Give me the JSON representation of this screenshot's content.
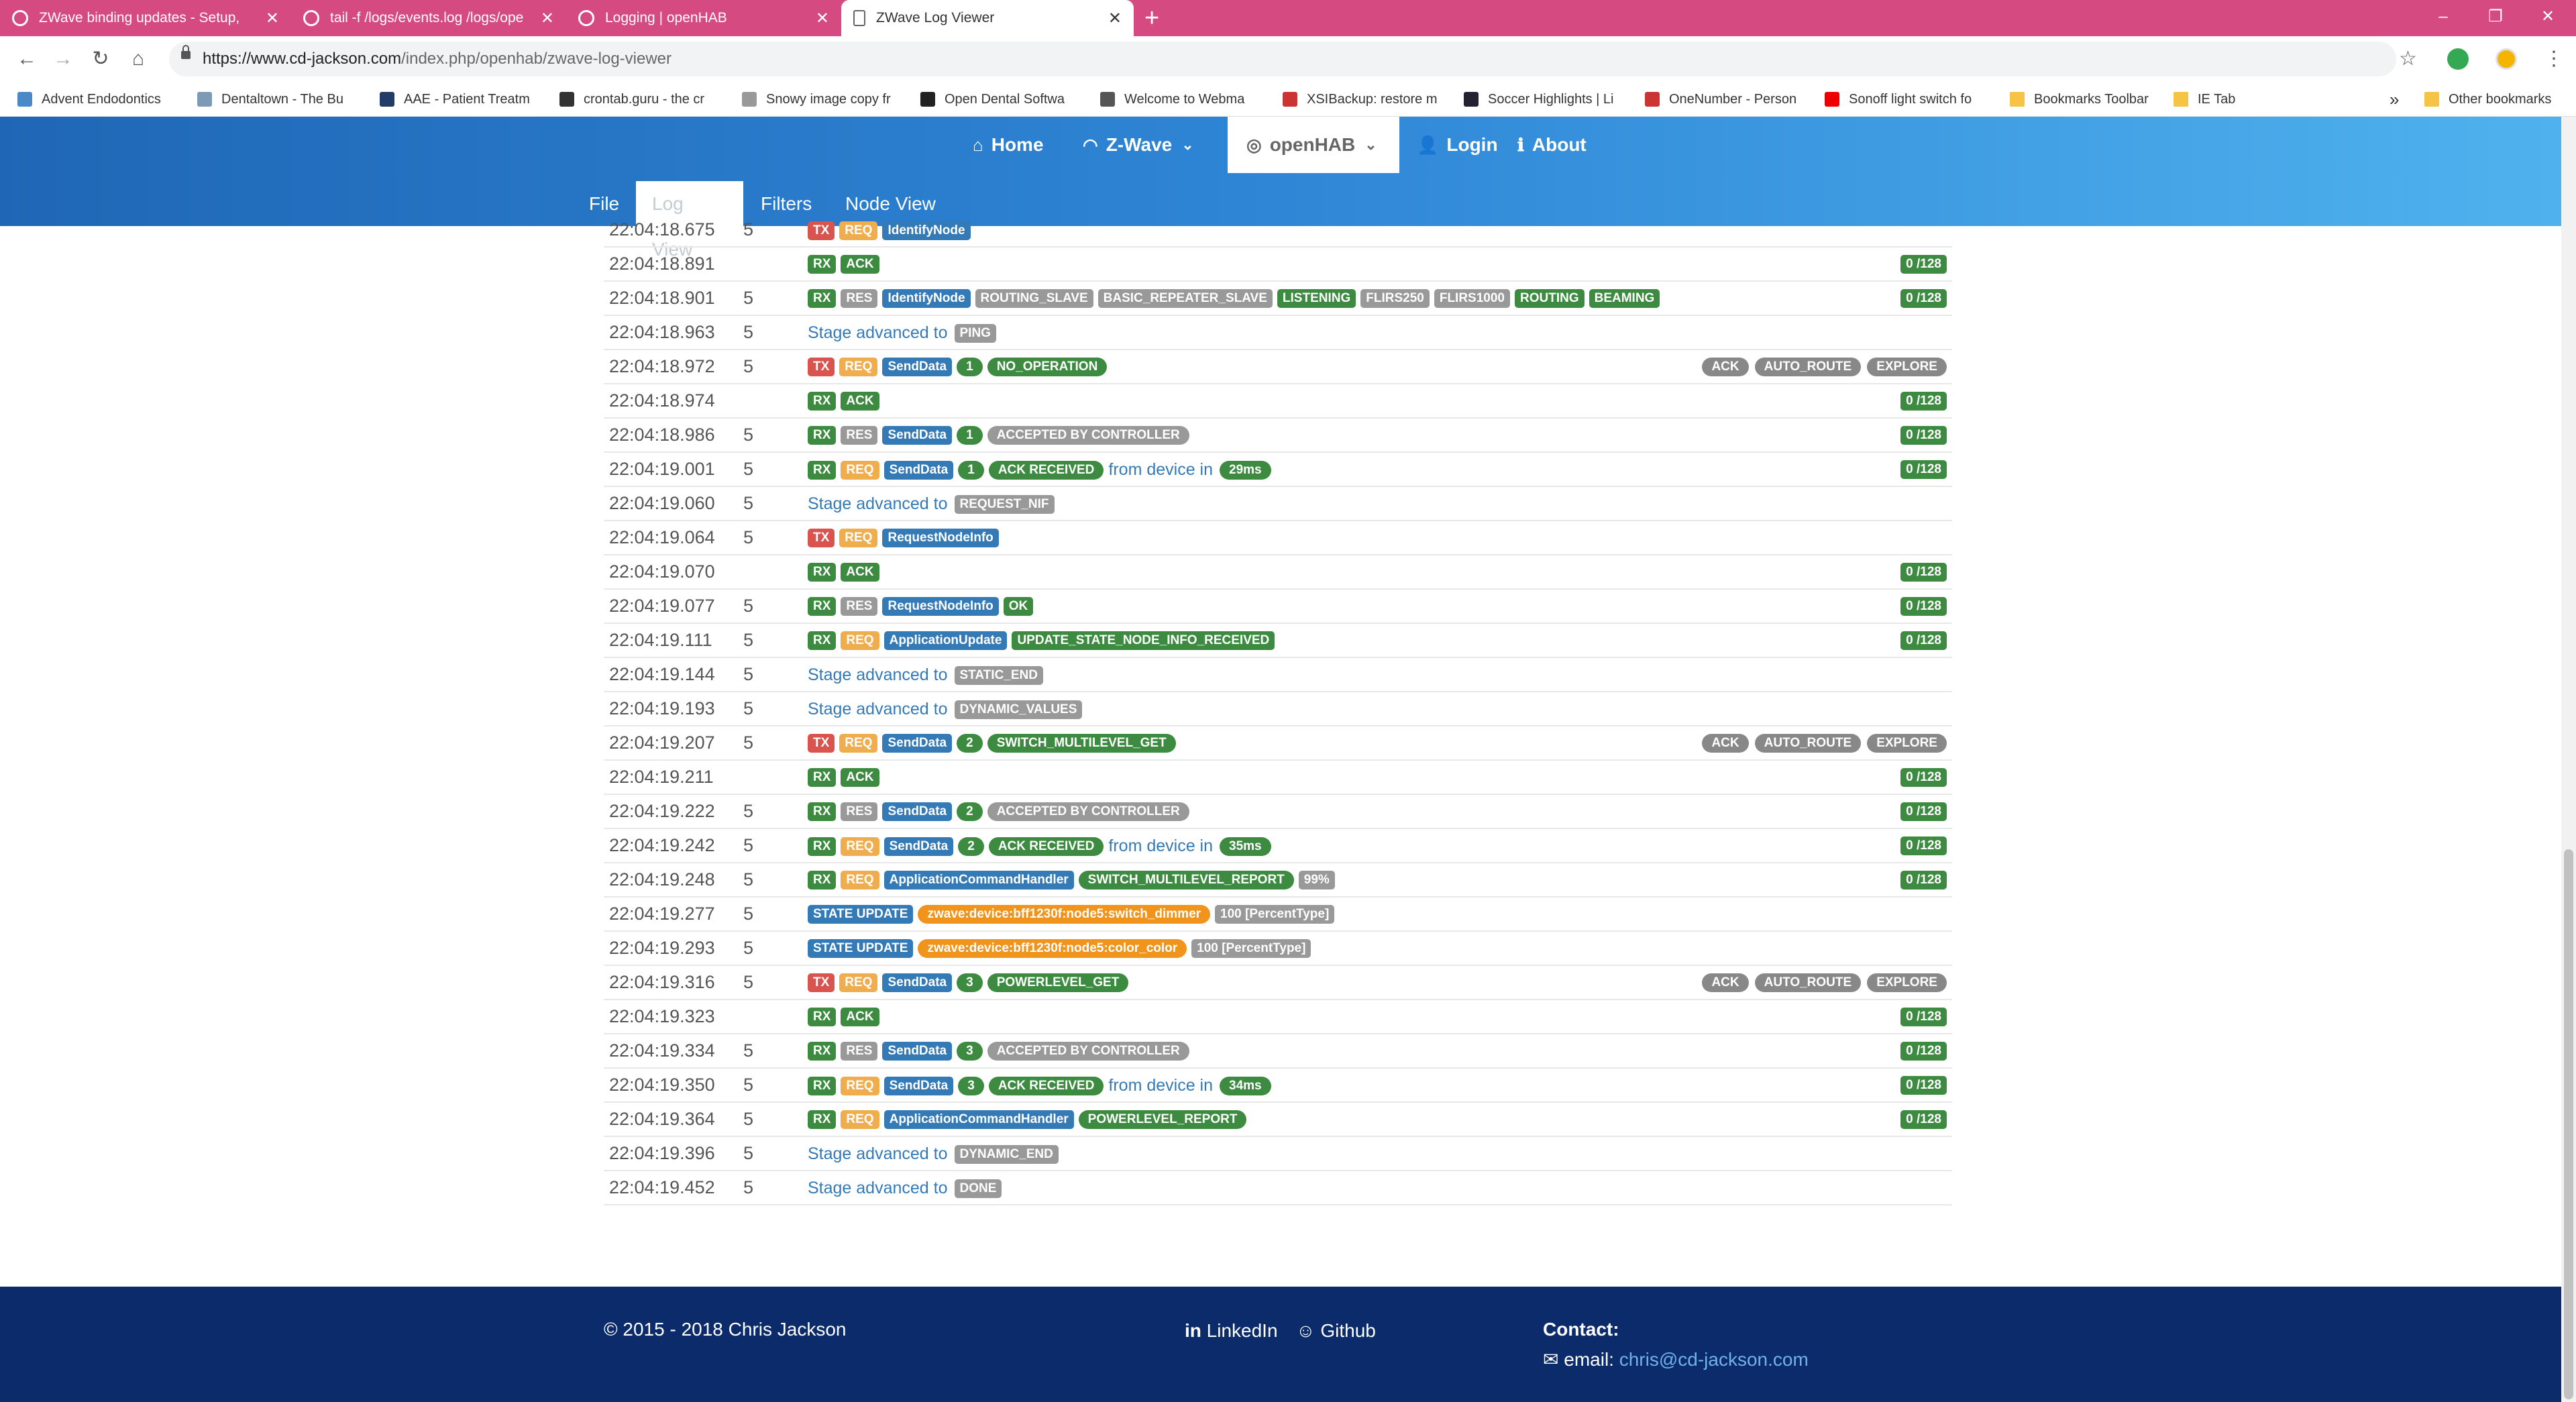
{
  "browser": {
    "tabs": [
      {
        "title": "ZWave binding updates - Setup,",
        "icon": "openhab-icon",
        "active": false
      },
      {
        "title": "tail -f /logs/events.log /logs/ope",
        "icon": "openhab-icon",
        "active": false
      },
      {
        "title": "Logging | openHAB",
        "icon": "openhab-icon",
        "active": false
      },
      {
        "title": "ZWave Log Viewer",
        "icon": "page-icon",
        "active": true
      }
    ],
    "new_tab": "+",
    "window_controls": [
      "–",
      "❐",
      "✕"
    ],
    "url_host": "https://www.cd-jackson.com",
    "url_path": "/index.php/openhab/zwave-log-viewer",
    "bookmarks": [
      "Advent Endodontics",
      "Dentaltown - The Bu",
      "AAE - Patient Treatm",
      "crontab.guru - the cr",
      "Snowy image copy fr",
      "Open Dental Softwa",
      "Welcome to Webma",
      "XSIBackup: restore m",
      "Soccer Highlights | Li",
      "OneNumber - Person",
      "Sonoff light switch fo",
      "Bookmarks Toolbar",
      "IE Tab"
    ],
    "more_bookmarks": "»",
    "other_bookmarks": "Other bookmarks"
  },
  "site_nav": {
    "items": [
      {
        "label": "Home",
        "icon": "home-icon"
      },
      {
        "label": "Z-Wave",
        "icon": "wifi-icon"
      },
      {
        "label": "openHAB",
        "icon": "openhab-icon"
      },
      {
        "label": "Login",
        "icon": "user-icon"
      },
      {
        "label": "About",
        "icon": "info-icon"
      }
    ],
    "subtabs": [
      "File",
      "Log View",
      "Filters",
      "Node View"
    ],
    "active_subtab": "Log View"
  },
  "log_rows": [
    {
      "time": "22:04:18.675",
      "node": "5",
      "msgs": [
        [
          "TX",
          "tx"
        ],
        [
          "REQ",
          "req"
        ],
        [
          "IdentifyNode",
          "fn"
        ]
      ],
      "text": "",
      "tags": [],
      "right_tags": [],
      "counter": ""
    },
    {
      "time": "22:04:18.891",
      "node": "",
      "msgs": [
        [
          "RX",
          "rx"
        ],
        [
          "ACK",
          "grn"
        ]
      ],
      "text": "",
      "tags": [],
      "right_tags": [],
      "counter": "0 /128"
    },
    {
      "time": "22:04:18.901",
      "node": "5",
      "msgs": [
        [
          "RX",
          "rx"
        ],
        [
          "RES",
          "res"
        ],
        [
          "IdentifyNode",
          "fn"
        ],
        [
          "ROUTING_SLAVE",
          "gry"
        ],
        [
          "BASIC_REPEATER_SLAVE",
          "gry"
        ],
        [
          "LISTENING",
          "grn"
        ],
        [
          "FLIRS250",
          "gry"
        ],
        [
          "FLIRS1000",
          "gry"
        ],
        [
          "ROUTING",
          "grn"
        ],
        [
          "BEAMING",
          "grn"
        ]
      ],
      "text": "",
      "tags": [],
      "right_tags": [],
      "counter": "0 /128"
    },
    {
      "time": "22:04:18.963",
      "node": "5",
      "msgs": [],
      "text": "Stage advanced to",
      "tags": [
        [
          "PING",
          "gry"
        ]
      ],
      "right_tags": [],
      "counter": ""
    },
    {
      "time": "22:04:18.972",
      "node": "5",
      "msgs": [
        [
          "TX",
          "tx"
        ],
        [
          "REQ",
          "req"
        ],
        [
          "SendData",
          "fn"
        ],
        [
          "1",
          "pill-grn"
        ],
        [
          "NO_OPERATION",
          "pill-grn"
        ]
      ],
      "text": "",
      "tags": [],
      "right_tags": [
        "ACK",
        "AUTO_ROUTE",
        "EXPLORE"
      ],
      "counter": ""
    },
    {
      "time": "22:04:18.974",
      "node": "",
      "msgs": [
        [
          "RX",
          "rx"
        ],
        [
          "ACK",
          "grn"
        ]
      ],
      "text": "",
      "tags": [],
      "right_tags": [],
      "counter": "0 /128"
    },
    {
      "time": "22:04:18.986",
      "node": "5",
      "msgs": [
        [
          "RX",
          "rx"
        ],
        [
          "RES",
          "res"
        ],
        [
          "SendData",
          "fn"
        ],
        [
          "1",
          "pill-grn"
        ],
        [
          "ACCEPTED BY CONTROLLER",
          "pill-gry"
        ]
      ],
      "text": "",
      "tags": [],
      "right_tags": [],
      "counter": "0 /128"
    },
    {
      "time": "22:04:19.001",
      "node": "5",
      "msgs": [
        [
          "RX",
          "rx"
        ],
        [
          "REQ",
          "req"
        ],
        [
          "SendData",
          "fn"
        ],
        [
          "1",
          "pill-grn"
        ],
        [
          "ACK RECEIVED",
          "pill-grn"
        ]
      ],
      "text": "from device in",
      "tags": [
        [
          "29ms",
          "pill-grn"
        ]
      ],
      "right_tags": [],
      "counter": "0 /128"
    },
    {
      "time": "22:04:19.060",
      "node": "5",
      "msgs": [],
      "text": "Stage advanced to",
      "tags": [
        [
          "REQUEST_NIF",
          "gry"
        ]
      ],
      "right_tags": [],
      "counter": ""
    },
    {
      "time": "22:04:19.064",
      "node": "5",
      "msgs": [
        [
          "TX",
          "tx"
        ],
        [
          "REQ",
          "req"
        ],
        [
          "RequestNodeInfo",
          "fn"
        ]
      ],
      "text": "",
      "tags": [],
      "right_tags": [],
      "counter": ""
    },
    {
      "time": "22:04:19.070",
      "node": "",
      "msgs": [
        [
          "RX",
          "rx"
        ],
        [
          "ACK",
          "grn"
        ]
      ],
      "text": "",
      "tags": [],
      "right_tags": [],
      "counter": "0 /128"
    },
    {
      "time": "22:04:19.077",
      "node": "5",
      "msgs": [
        [
          "RX",
          "rx"
        ],
        [
          "RES",
          "res"
        ],
        [
          "RequestNodeInfo",
          "fn"
        ],
        [
          "OK",
          "grn"
        ]
      ],
      "text": "",
      "tags": [],
      "right_tags": [],
      "counter": "0 /128"
    },
    {
      "time": "22:04:19.111",
      "node": "5",
      "msgs": [
        [
          "RX",
          "rx"
        ],
        [
          "REQ",
          "req"
        ],
        [
          "ApplicationUpdate",
          "fn"
        ],
        [
          "UPDATE_STATE_NODE_INFO_RECEIVED",
          "grn"
        ]
      ],
      "text": "",
      "tags": [],
      "right_tags": [],
      "counter": "0 /128"
    },
    {
      "time": "22:04:19.144",
      "node": "5",
      "msgs": [],
      "text": "Stage advanced to",
      "tags": [
        [
          "STATIC_END",
          "gry"
        ]
      ],
      "right_tags": [],
      "counter": ""
    },
    {
      "time": "22:04:19.193",
      "node": "5",
      "msgs": [],
      "text": "Stage advanced to",
      "tags": [
        [
          "DYNAMIC_VALUES",
          "gry"
        ]
      ],
      "right_tags": [],
      "counter": ""
    },
    {
      "time": "22:04:19.207",
      "node": "5",
      "msgs": [
        [
          "TX",
          "tx"
        ],
        [
          "REQ",
          "req"
        ],
        [
          "SendData",
          "fn"
        ],
        [
          "2",
          "pill-grn"
        ],
        [
          "SWITCH_MULTILEVEL_GET",
          "pill-grn"
        ]
      ],
      "text": "",
      "tags": [],
      "right_tags": [
        "ACK",
        "AUTO_ROUTE",
        "EXPLORE"
      ],
      "counter": ""
    },
    {
      "time": "22:04:19.211",
      "node": "",
      "msgs": [
        [
          "RX",
          "rx"
        ],
        [
          "ACK",
          "grn"
        ]
      ],
      "text": "",
      "tags": [],
      "right_tags": [],
      "counter": "0 /128"
    },
    {
      "time": "22:04:19.222",
      "node": "5",
      "msgs": [
        [
          "RX",
          "rx"
        ],
        [
          "RES",
          "res"
        ],
        [
          "SendData",
          "fn"
        ],
        [
          "2",
          "pill-grn"
        ],
        [
          "ACCEPTED BY CONTROLLER",
          "pill-gry"
        ]
      ],
      "text": "",
      "tags": [],
      "right_tags": [],
      "counter": "0 /128"
    },
    {
      "time": "22:04:19.242",
      "node": "5",
      "msgs": [
        [
          "RX",
          "rx"
        ],
        [
          "REQ",
          "req"
        ],
        [
          "SendData",
          "fn"
        ],
        [
          "2",
          "pill-grn"
        ],
        [
          "ACK RECEIVED",
          "pill-grn"
        ]
      ],
      "text": "from device in",
      "tags": [
        [
          "35ms",
          "pill-grn"
        ]
      ],
      "right_tags": [],
      "counter": "0 /128"
    },
    {
      "time": "22:04:19.248",
      "node": "5",
      "msgs": [
        [
          "RX",
          "rx"
        ],
        [
          "REQ",
          "req"
        ],
        [
          "ApplicationCommandHandler",
          "fn"
        ],
        [
          "SWITCH_MULTILEVEL_REPORT",
          "pill-grn"
        ],
        [
          "99%",
          "gry"
        ]
      ],
      "text": "",
      "tags": [],
      "right_tags": [],
      "counter": "0 /128"
    },
    {
      "time": "22:04:19.277",
      "node": "5",
      "msgs": [
        [
          "STATE UPDATE",
          "blu"
        ],
        [
          "zwave:device:bff1230f:node5:switch_dimmer",
          "pill-org"
        ],
        [
          "100 [PercentType]",
          "gry"
        ]
      ],
      "text": "",
      "tags": [],
      "right_tags": [],
      "counter": ""
    },
    {
      "time": "22:04:19.293",
      "node": "5",
      "msgs": [
        [
          "STATE UPDATE",
          "blu"
        ],
        [
          "zwave:device:bff1230f:node5:color_color",
          "pill-org"
        ],
        [
          "100 [PercentType]",
          "gry"
        ]
      ],
      "text": "",
      "tags": [],
      "right_tags": [],
      "counter": ""
    },
    {
      "time": "22:04:19.316",
      "node": "5",
      "msgs": [
        [
          "TX",
          "tx"
        ],
        [
          "REQ",
          "req"
        ],
        [
          "SendData",
          "fn"
        ],
        [
          "3",
          "pill-grn"
        ],
        [
          "POWERLEVEL_GET",
          "pill-grn"
        ]
      ],
      "text": "",
      "tags": [],
      "right_tags": [
        "ACK",
        "AUTO_ROUTE",
        "EXPLORE"
      ],
      "counter": ""
    },
    {
      "time": "22:04:19.323",
      "node": "",
      "msgs": [
        [
          "RX",
          "rx"
        ],
        [
          "ACK",
          "grn"
        ]
      ],
      "text": "",
      "tags": [],
      "right_tags": [],
      "counter": "0 /128"
    },
    {
      "time": "22:04:19.334",
      "node": "5",
      "msgs": [
        [
          "RX",
          "rx"
        ],
        [
          "RES",
          "res"
        ],
        [
          "SendData",
          "fn"
        ],
        [
          "3",
          "pill-grn"
        ],
        [
          "ACCEPTED BY CONTROLLER",
          "pill-gry"
        ]
      ],
      "text": "",
      "tags": [],
      "right_tags": [],
      "counter": "0 /128"
    },
    {
      "time": "22:04:19.350",
      "node": "5",
      "msgs": [
        [
          "RX",
          "rx"
        ],
        [
          "REQ",
          "req"
        ],
        [
          "SendData",
          "fn"
        ],
        [
          "3",
          "pill-grn"
        ],
        [
          "ACK RECEIVED",
          "pill-grn"
        ]
      ],
      "text": "from device in",
      "tags": [
        [
          "34ms",
          "pill-grn"
        ]
      ],
      "right_tags": [],
      "counter": "0 /128"
    },
    {
      "time": "22:04:19.364",
      "node": "5",
      "msgs": [
        [
          "RX",
          "rx"
        ],
        [
          "REQ",
          "req"
        ],
        [
          "ApplicationCommandHandler",
          "fn"
        ],
        [
          "POWERLEVEL_REPORT",
          "pill-grn"
        ]
      ],
      "text": "",
      "tags": [],
      "right_tags": [],
      "counter": "0 /128"
    },
    {
      "time": "22:04:19.396",
      "node": "5",
      "msgs": [],
      "text": "Stage advanced to",
      "tags": [
        [
          "DYNAMIC_END",
          "gry"
        ]
      ],
      "right_tags": [],
      "counter": ""
    },
    {
      "time": "22:04:19.452",
      "node": "5",
      "msgs": [],
      "text": "Stage advanced to",
      "tags": [
        [
          "DONE",
          "gry"
        ]
      ],
      "right_tags": [],
      "counter": ""
    }
  ],
  "footer": {
    "copyright": "© 2015 - 2018 Chris Jackson",
    "linkedin": "LinkedIn",
    "github": "Github",
    "contact_title": "Contact:",
    "email_label": "email:",
    "email": "chris@cd-jackson.com"
  },
  "colors": {
    "tab_strip": "#d64a82",
    "nav_gradient_start": "#1f67b6",
    "nav_gradient_end": "#4fb2ee",
    "footer_bg": "#0b2b6a",
    "tx": "#d9534f",
    "rx": "#3d8b40",
    "req": "#f0ad4e",
    "function": "#337ab7"
  }
}
